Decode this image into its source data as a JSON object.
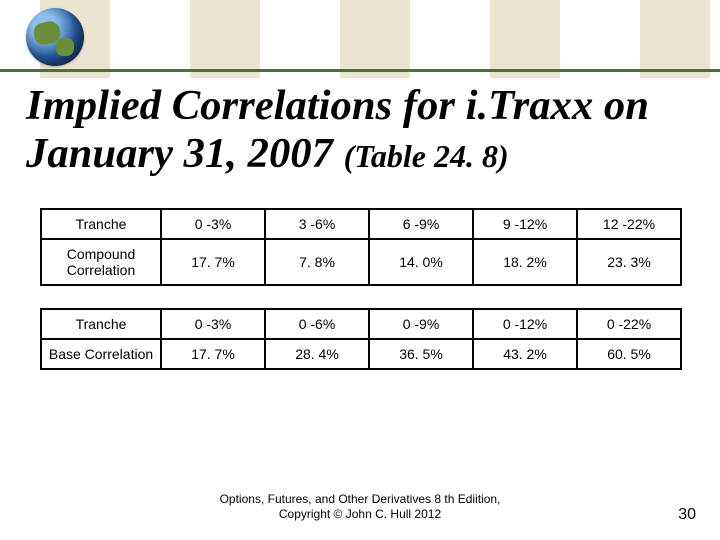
{
  "banner": {
    "accent_color": "#4f6e3a",
    "map_tint": "#c6b078",
    "globe_sea": "#2a5ea6",
    "globe_land": "#6a8f3c"
  },
  "title": {
    "line1": "Implied Correlations for i.Traxx on",
    "line2_main": "January 31, 2007 ",
    "line2_paren": "(Table 24. 8)",
    "fontsize_main_pt": 32,
    "fontsize_paren_pt": 24,
    "font_style": "italic",
    "font_weight": "bold",
    "color": "#000000"
  },
  "tables": {
    "cell_fontsize_pt": 14,
    "border_color": "#000000",
    "font_family": "Verdana",
    "compound": {
      "rows": [
        {
          "label": "Tranche",
          "cells": [
            "0 -3%",
            "3 -6%",
            "6 -9%",
            "9 -12%",
            "12 -22%"
          ]
        },
        {
          "label": "Compound Correlation",
          "cells": [
            "17. 7%",
            "7. 8%",
            "14. 0%",
            "18. 2%",
            "23. 3%"
          ]
        }
      ]
    },
    "base": {
      "rows": [
        {
          "label": "Tranche",
          "cells": [
            "0 -3%",
            "0 -6%",
            "0 -9%",
            "0 -12%",
            "0 -22%"
          ]
        },
        {
          "label": "Base Correlation",
          "cells": [
            "17. 7%",
            "28. 4%",
            "36. 5%",
            "43. 2%",
            "60. 5%"
          ]
        }
      ]
    }
  },
  "footer": {
    "line1": "Options, Futures, and Other Derivatives 8 th Ediition,",
    "line2": "Copyright © John C. Hull 2012",
    "fontsize_pt": 12,
    "color": "#000000"
  },
  "page_number": {
    "value": "30",
    "fontsize_pt": 16,
    "color": "#000000"
  }
}
